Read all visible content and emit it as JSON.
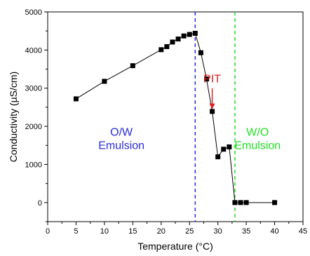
{
  "chart_data": {
    "type": "scatter",
    "xlabel": "Temperature (°C)",
    "ylabel": "Conductivity (µS/cm)",
    "xlim": [
      0,
      45
    ],
    "ylim": [
      -500,
      5000
    ],
    "xticks": [
      0,
      5,
      10,
      15,
      20,
      25,
      30,
      35,
      40,
      45
    ],
    "yticks": [
      0,
      1000,
      2000,
      3000,
      4000,
      5000
    ],
    "grid": false,
    "series": [
      {
        "marker": "square",
        "line": true,
        "color": "#000000",
        "x": [
          5,
          10,
          15,
          20,
          21,
          22,
          23,
          24,
          25,
          26,
          27,
          28,
          29,
          30,
          31,
          32,
          33,
          34,
          35,
          40
        ],
        "y": [
          2720,
          3180,
          3590,
          4010,
          4090,
          4210,
          4290,
          4370,
          4410,
          4440,
          3930,
          3240,
          2390,
          1200,
          1400,
          1460,
          0,
          0,
          0,
          0
        ]
      }
    ],
    "reference_lines": [
      {
        "axis": "x",
        "value": 26,
        "color": "#2b2bd6",
        "style": "dashed"
      },
      {
        "axis": "x",
        "value": 33,
        "color": "#22dd22",
        "style": "dashed"
      }
    ],
    "annotations": [
      {
        "text": "PIT",
        "color": "#e02020",
        "x": 29.0,
        "y": 3000,
        "arrow_to": [
          29.0,
          2450
        ]
      },
      {
        "lines": [
          "O/W",
          "Emulsion"
        ],
        "color": "#2b2bd6",
        "x": 13,
        "y": 1750
      },
      {
        "lines": [
          "W/O",
          "Emulsion"
        ],
        "color": "#22dd22",
        "x": 37,
        "y": 1750
      }
    ]
  }
}
